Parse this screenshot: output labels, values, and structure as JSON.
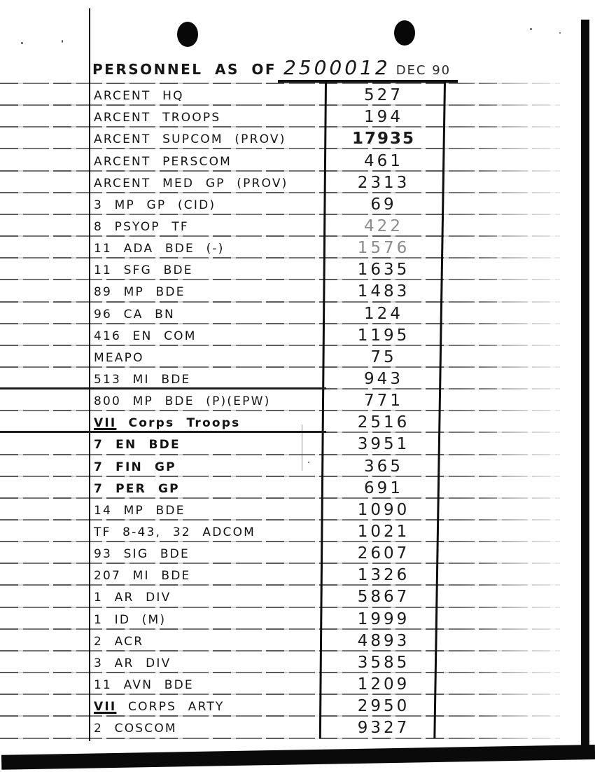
{
  "page": {
    "title": {
      "prefix": "PERSONNEL AS OF",
      "date": "2500012",
      "date_suffix": "DEC 90"
    }
  },
  "table": {
    "rows": [
      {
        "label": "ARCENT HQ",
        "value": "527"
      },
      {
        "label": "ARCENT TROOPS",
        "value": "194"
      },
      {
        "label": "ARCENT SUPCOM (PROV)",
        "value": "17935",
        "bold_value": true
      },
      {
        "label": "ARCENT PERSCOM",
        "value": "461"
      },
      {
        "label": "ARCENT MED GP (PROV)",
        "value": "2313"
      },
      {
        "label": "3 MP GP (CID)",
        "value": "69"
      },
      {
        "label": "8 PSYOP TF",
        "value": "422",
        "faint_value": true
      },
      {
        "label": "11 ADA BDE (-)",
        "value": "1576",
        "faint_value": true
      },
      {
        "label": "11 SFG BDE",
        "value": "1635"
      },
      {
        "label": "89 MP BDE",
        "value": "1483"
      },
      {
        "label": "96 CA BN",
        "value": "124"
      },
      {
        "label": "416 EN COM",
        "value": "1195"
      },
      {
        "label": "MEAPO",
        "value": "75"
      },
      {
        "label": "513 MI BDE",
        "value": "943",
        "heavy_rule": true
      },
      {
        "label": "800 MP BDE (P)(EPW)",
        "value": "771"
      },
      {
        "label": "VII Corps Troops",
        "value": "2516",
        "bold": true,
        "underline_prefix": "VII",
        "heavy_rule": true
      },
      {
        "label": "7 EN BDE",
        "value": "3951",
        "bold": true
      },
      {
        "label": "7 FIN GP",
        "value": "365",
        "bold": true
      },
      {
        "label": "7 PER GP",
        "value": "691",
        "bold": true
      },
      {
        "label": "14 MP BDE",
        "value": "1090"
      },
      {
        "label": "TF 8-43, 32 ADCOM",
        "value": "1021"
      },
      {
        "label": "93 SIG BDE",
        "value": "2607"
      },
      {
        "label": "207 MI BDE",
        "value": "1326"
      },
      {
        "label": "1 AR DIV",
        "value": "5867"
      },
      {
        "label": "1 ID (M)",
        "value": "1999"
      },
      {
        "label": "2 ACR",
        "value": "4893"
      },
      {
        "label": "3 AR DIV",
        "value": "3585"
      },
      {
        "label": "11 AVN BDE",
        "value": "1209"
      },
      {
        "label": "VII CORPS ARTY",
        "value": "2950",
        "underline_prefix": "VII"
      },
      {
        "label": "2 COSCOM",
        "value": "9327"
      }
    ]
  }
}
